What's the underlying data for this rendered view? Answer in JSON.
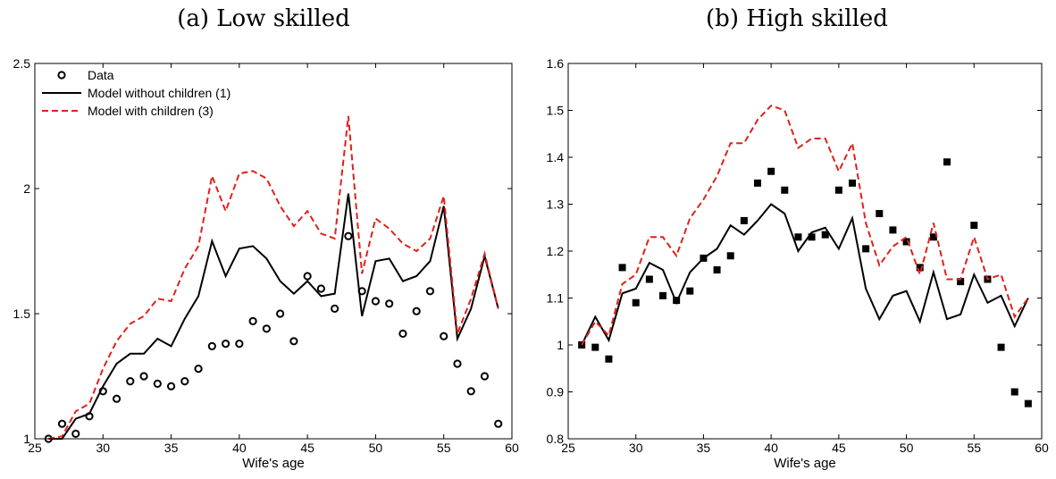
{
  "chart_data": [
    {
      "type": "line",
      "title": "(a) Low skilled",
      "xlabel": "Wife's age",
      "ylabel": "",
      "xlim": [
        25,
        60
      ],
      "ylim": [
        1,
        2.5
      ],
      "xticks": [
        25,
        30,
        35,
        40,
        45,
        50,
        55,
        60
      ],
      "yticks": [
        1,
        1.5,
        2,
        2.5
      ],
      "ytick_labels": [
        "1",
        "1.5",
        "2",
        "2.5"
      ],
      "legend_position": "top-left",
      "grid": false,
      "series": [
        {
          "name": "Data",
          "marker": "open-circle",
          "line": "none",
          "color": "#000000",
          "x": [
            26,
            27,
            28,
            29,
            30,
            31,
            32,
            33,
            34,
            35,
            36,
            37,
            38,
            39,
            40,
            41,
            42,
            43,
            44,
            45,
            46,
            47,
            48,
            49,
            50,
            51,
            52,
            53,
            54,
            55,
            56,
            57,
            58,
            59
          ],
          "y": [
            1.0,
            1.06,
            1.02,
            1.09,
            1.19,
            1.16,
            1.23,
            1.25,
            1.22,
            1.21,
            1.23,
            1.28,
            1.37,
            1.38,
            1.38,
            1.47,
            1.44,
            1.5,
            1.39,
            1.65,
            1.6,
            1.52,
            1.81,
            1.59,
            1.55,
            1.54,
            1.42,
            1.51,
            1.59,
            1.41,
            1.3,
            1.19,
            1.25,
            1.06
          ]
        },
        {
          "name": "Model without children (1)",
          "marker": "none",
          "line": "solid",
          "color": "#000000",
          "x": [
            26,
            27,
            28,
            29,
            30,
            31,
            32,
            33,
            34,
            35,
            36,
            37,
            38,
            39,
            40,
            41,
            42,
            43,
            44,
            45,
            46,
            47,
            48,
            49,
            50,
            51,
            52,
            53,
            54,
            55,
            56,
            57,
            58,
            59
          ],
          "y": [
            1.0,
            1.0,
            1.08,
            1.1,
            1.21,
            1.3,
            1.34,
            1.34,
            1.4,
            1.37,
            1.48,
            1.57,
            1.79,
            1.65,
            1.76,
            1.77,
            1.72,
            1.63,
            1.58,
            1.63,
            1.57,
            1.58,
            1.98,
            1.49,
            1.71,
            1.72,
            1.63,
            1.65,
            1.71,
            1.93,
            1.4,
            1.52,
            1.73,
            1.52
          ]
        },
        {
          "name": "Model with children (3)",
          "marker": "none",
          "line": "dashed",
          "color": "#e0201c",
          "x": [
            26,
            27,
            28,
            29,
            30,
            31,
            32,
            33,
            34,
            35,
            36,
            37,
            38,
            39,
            40,
            41,
            42,
            43,
            44,
            45,
            46,
            47,
            48,
            49,
            50,
            51,
            52,
            53,
            54,
            55,
            56,
            57,
            58,
            59
          ],
          "y": [
            1.0,
            1.01,
            1.11,
            1.14,
            1.28,
            1.39,
            1.46,
            1.49,
            1.56,
            1.55,
            1.68,
            1.77,
            2.05,
            1.91,
            2.06,
            2.07,
            2.04,
            1.93,
            1.85,
            1.91,
            1.82,
            1.8,
            2.29,
            1.66,
            1.88,
            1.84,
            1.78,
            1.75,
            1.8,
            1.97,
            1.42,
            1.56,
            1.74,
            1.52
          ]
        }
      ]
    },
    {
      "type": "line",
      "title": "(b) High skilled",
      "xlabel": "Wife's age",
      "ylabel": "",
      "xlim": [
        25,
        60
      ],
      "ylim": [
        0.8,
        1.6
      ],
      "xticks": [
        25,
        30,
        35,
        40,
        45,
        50,
        55,
        60
      ],
      "yticks": [
        0.8,
        0.9,
        1.0,
        1.1,
        1.2,
        1.3,
        1.4,
        1.5,
        1.6
      ],
      "ytick_labels": [
        "0.8",
        "0.9",
        "1",
        "1.1",
        "1.2",
        "1.3",
        "1.4",
        "1.5",
        "1.6"
      ],
      "grid": false,
      "series": [
        {
          "name": "Data",
          "marker": "filled-square",
          "line": "none",
          "color": "#000000",
          "x": [
            26,
            27,
            28,
            29,
            30,
            31,
            32,
            33,
            34,
            35,
            36,
            37,
            38,
            39,
            40,
            41,
            42,
            43,
            44,
            45,
            46,
            47,
            48,
            49,
            50,
            51,
            52,
            53,
            54,
            55,
            56,
            57,
            58,
            59
          ],
          "y": [
            1.0,
            0.995,
            0.97,
            1.165,
            1.09,
            1.14,
            1.105,
            1.095,
            1.115,
            1.185,
            1.16,
            1.19,
            1.265,
            1.345,
            1.37,
            1.33,
            1.23,
            1.23,
            1.235,
            1.33,
            1.345,
            1.205,
            1.28,
            1.245,
            1.22,
            1.165,
            1.23,
            1.39,
            1.135,
            1.255,
            1.14,
            0.995,
            0.9,
            0.875
          ]
        },
        {
          "name": "Model without children (1)",
          "marker": "none",
          "line": "solid",
          "color": "#000000",
          "x": [
            26,
            27,
            28,
            29,
            30,
            31,
            32,
            33,
            34,
            35,
            36,
            37,
            38,
            39,
            40,
            41,
            42,
            43,
            44,
            45,
            46,
            47,
            48,
            49,
            50,
            51,
            52,
            53,
            54,
            55,
            56,
            57,
            58,
            59
          ],
          "y": [
            1.0,
            1.06,
            1.01,
            1.11,
            1.12,
            1.175,
            1.16,
            1.09,
            1.155,
            1.185,
            1.205,
            1.255,
            1.235,
            1.265,
            1.3,
            1.28,
            1.2,
            1.24,
            1.25,
            1.205,
            1.27,
            1.12,
            1.055,
            1.105,
            1.115,
            1.05,
            1.155,
            1.055,
            1.065,
            1.15,
            1.09,
            1.105,
            1.04,
            1.1
          ]
        },
        {
          "name": "Model with children (3)",
          "marker": "none",
          "line": "dashed",
          "color": "#e0201c",
          "x": [
            26,
            27,
            28,
            29,
            30,
            31,
            32,
            33,
            34,
            35,
            36,
            37,
            38,
            39,
            40,
            41,
            42,
            43,
            44,
            45,
            46,
            47,
            48,
            49,
            50,
            51,
            52,
            53,
            54,
            55,
            56,
            57,
            58,
            59
          ],
          "y": [
            1.0,
            1.05,
            1.02,
            1.13,
            1.15,
            1.23,
            1.23,
            1.19,
            1.27,
            1.31,
            1.36,
            1.43,
            1.43,
            1.48,
            1.51,
            1.5,
            1.42,
            1.44,
            1.44,
            1.37,
            1.43,
            1.26,
            1.17,
            1.21,
            1.23,
            1.15,
            1.26,
            1.14,
            1.14,
            1.23,
            1.14,
            1.15,
            1.06,
            1.1
          ]
        }
      ]
    }
  ]
}
